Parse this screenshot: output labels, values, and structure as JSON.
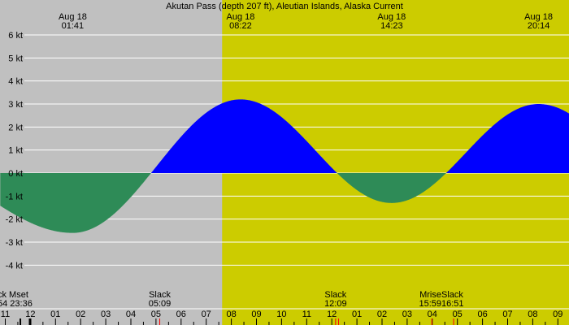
{
  "chart_data": {
    "type": "area",
    "title": "Akutan Pass (depth 207 ft), Aleutian Islands, Alaska Current",
    "unit": "kt",
    "ylim": [
      -5,
      6.5
    ],
    "y_ticks": [
      {
        "value": 6,
        "label": "6 kt"
      },
      {
        "value": 5,
        "label": "5 kt"
      },
      {
        "value": 4,
        "label": "4 kt"
      },
      {
        "value": 3,
        "label": "3 kt"
      },
      {
        "value": 2,
        "label": "2 kt"
      },
      {
        "value": 1,
        "label": "1 kt"
      },
      {
        "value": 0,
        "label": "0 kt"
      },
      {
        "value": -1,
        "label": "-1 kt"
      },
      {
        "value": -2,
        "label": "-2 kt"
      },
      {
        "value": -3,
        "label": "-3 kt"
      },
      {
        "value": -4,
        "label": "-4 kt"
      }
    ],
    "x_hours": [
      11,
      12,
      1,
      2,
      3,
      4,
      5,
      6,
      7,
      8,
      9,
      10,
      11,
      12,
      1,
      2,
      3,
      4,
      5,
      6,
      7,
      8,
      9
    ],
    "x_tick_labels": [
      "11",
      "12",
      "01",
      "02",
      "03",
      "04",
      "05",
      "06",
      "07",
      "08",
      "09",
      "10",
      "11",
      "12",
      "01",
      "02",
      "03",
      "04",
      "05",
      "06",
      "07",
      "08",
      "09"
    ],
    "top_labels": [
      {
        "date": "Aug 18",
        "time": "01:41"
      },
      {
        "date": "Aug 18",
        "time": "08:22"
      },
      {
        "date": "Aug 18",
        "time": "14:23"
      },
      {
        "date": "Aug 18",
        "time": "20:14"
      }
    ],
    "bottom_events": [
      {
        "label": "ck Mset",
        "time": "54 23:36"
      },
      {
        "label": "Slack",
        "time": "05:09"
      },
      {
        "label": "Slack",
        "time": "12:09"
      },
      {
        "label": "Mrise",
        "time": "15:59"
      },
      {
        "label": "Slack",
        "time": "16:51"
      }
    ],
    "extremes": [
      {
        "time": "01:41",
        "value": -2.6
      },
      {
        "time": "08:22",
        "value": 3.2
      },
      {
        "time": "14:23",
        "value": -1.3
      },
      {
        "time": "20:14",
        "value": 3.0
      }
    ],
    "slack_times": [
      "05:09",
      "12:09",
      "16:51"
    ],
    "daylight_start": "07:38",
    "colors": {
      "night": "#c0c0c0",
      "day": "#cccc00",
      "flood": "#0000ff",
      "ebb": "#2e8b57",
      "grid": "#ffffff",
      "moon_marker": "#ff0000"
    },
    "grid": true
  }
}
